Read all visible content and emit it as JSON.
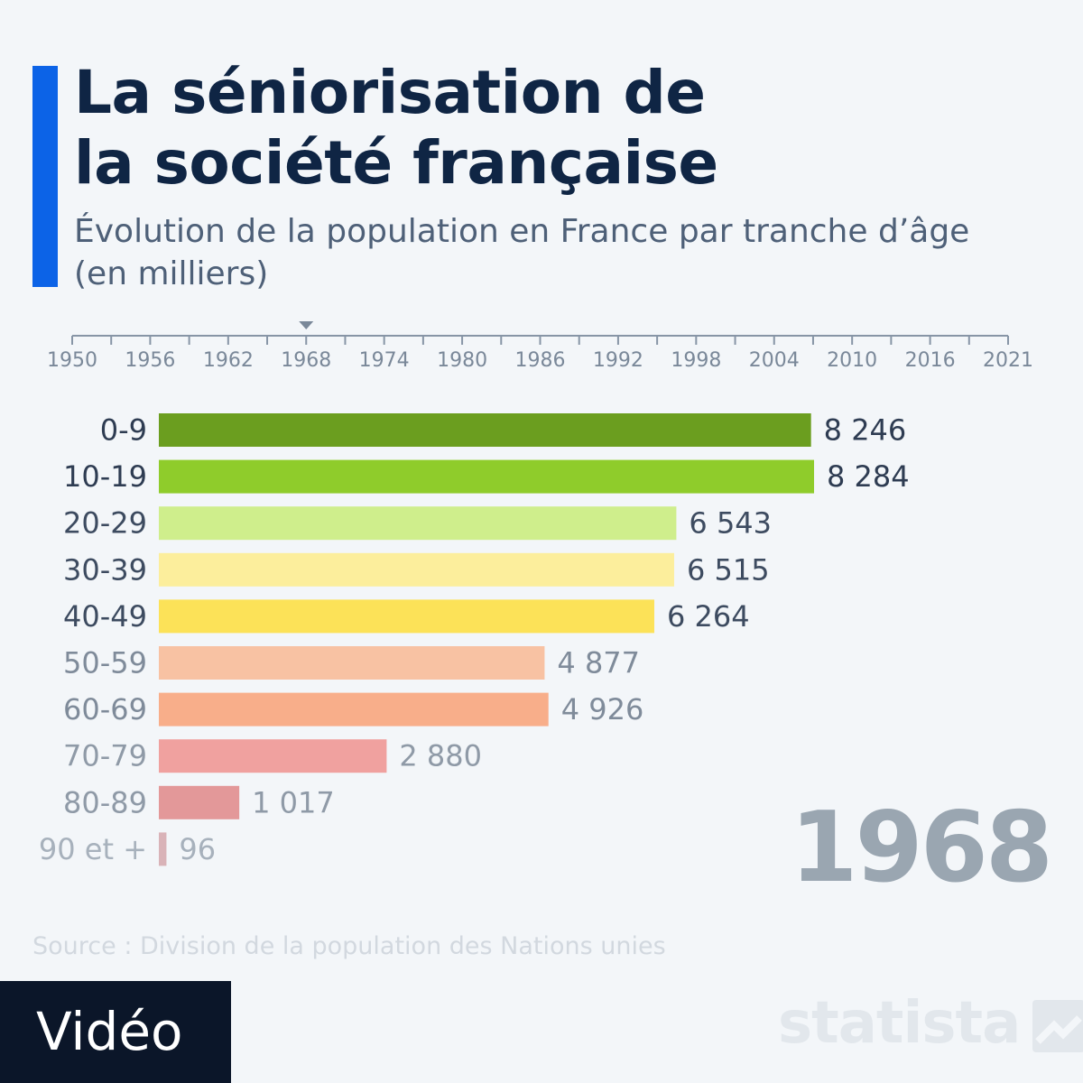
{
  "header": {
    "title_line1": "La séniorisation de",
    "title_line2": "la société française",
    "subtitle_line1": "Évolution de la population en France par tranche d’âge",
    "subtitle_line2": "(en milliers)"
  },
  "timeline": {
    "years": [
      "1950",
      "1956",
      "1962",
      "1968",
      "1974",
      "1980",
      "1986",
      "1992",
      "1998",
      "2004",
      "2010",
      "2016",
      "2021"
    ],
    "current": "1968"
  },
  "chart_data": {
    "type": "bar",
    "orientation": "horizontal",
    "categories": [
      "0-9",
      "10-19",
      "20-29",
      "30-39",
      "40-49",
      "50-59",
      "60-69",
      "70-79",
      "80-89",
      "90 et +"
    ],
    "values": [
      8246,
      8284,
      6543,
      6515,
      6264,
      4877,
      4926,
      2880,
      1017,
      96
    ],
    "value_labels": [
      "8 246",
      "8 284",
      "6 543",
      "6 515",
      "6 264",
      "4 877",
      "4 926",
      "2 880",
      "1 017",
      "96"
    ],
    "colors": [
      "#6b9e1f",
      "#8fcc2b",
      "#cfee8c",
      "#fcee9c",
      "#fce258",
      "#f8c2a3",
      "#f8ae8a",
      "#f0a19f",
      "#e39899",
      "#d9b3b8"
    ],
    "label_colors": [
      "#2e3c52",
      "#2e3c52",
      "#3d4b60",
      "#3d4b60",
      "#3d4b60",
      "#7f8b9a",
      "#7f8b9a",
      "#8f9aa7",
      "#8f9aa7",
      "#a7b1bc"
    ],
    "title": "La séniorisation de la société française",
    "xlabel": "",
    "ylabel": "",
    "year": "1968"
  },
  "year_display": "1968",
  "footer": {
    "source": "Source : Division de la population des Nations unies",
    "video_label": "Vidéo",
    "logo_text": "statista",
    "logo_icon": "statista-logo-icon"
  }
}
